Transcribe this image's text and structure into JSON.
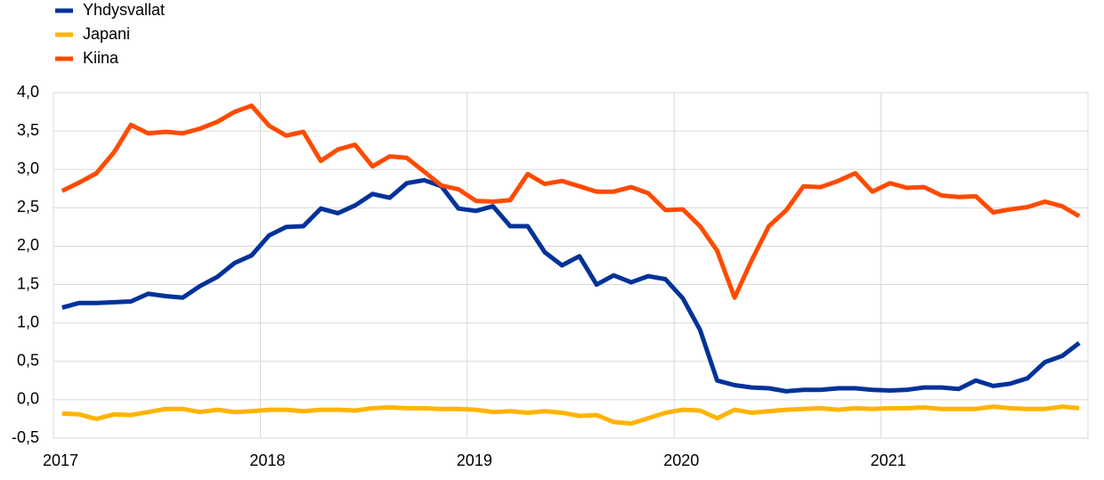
{
  "chart_data": {
    "type": "line",
    "x": [
      2017.042,
      2017.125,
      2017.208,
      2017.292,
      2017.375,
      2017.458,
      2017.542,
      2017.625,
      2017.708,
      2017.792,
      2017.875,
      2017.958,
      2018.042,
      2018.125,
      2018.208,
      2018.292,
      2018.375,
      2018.458,
      2018.542,
      2018.625,
      2018.708,
      2018.792,
      2018.875,
      2018.958,
      2019.042,
      2019.125,
      2019.208,
      2019.292,
      2019.375,
      2019.458,
      2019.542,
      2019.625,
      2019.708,
      2019.792,
      2019.875,
      2019.958,
      2020.042,
      2020.125,
      2020.208,
      2020.292,
      2020.375,
      2020.458,
      2020.542,
      2020.625,
      2020.708,
      2020.792,
      2020.875,
      2020.958,
      2021.042,
      2021.125,
      2021.208,
      2021.292,
      2021.375,
      2021.458,
      2021.542,
      2021.625,
      2021.708,
      2021.792,
      2021.875,
      2021.958
    ],
    "series": [
      {
        "name": "Yhdysvallat",
        "color": "#003299",
        "values": [
          1.2,
          1.26,
          1.26,
          1.27,
          1.28,
          1.38,
          1.35,
          1.33,
          1.48,
          1.6,
          1.78,
          1.88,
          2.14,
          2.25,
          2.26,
          2.49,
          2.43,
          2.53,
          2.68,
          2.63,
          2.82,
          2.86,
          2.78,
          2.49,
          2.46,
          2.52,
          2.26,
          2.26,
          1.92,
          1.75,
          1.87,
          1.5,
          1.62,
          1.53,
          1.61,
          1.57,
          1.32,
          0.91,
          0.25,
          0.19,
          0.16,
          0.15,
          0.11,
          0.13,
          0.13,
          0.15,
          0.15,
          0.13,
          0.12,
          0.13,
          0.16,
          0.16,
          0.14,
          0.25,
          0.18,
          0.21,
          0.28,
          0.49,
          0.57,
          0.74
        ]
      },
      {
        "name": "Japani",
        "color": "#ffb400",
        "values": [
          -0.18,
          -0.19,
          -0.25,
          -0.19,
          -0.2,
          -0.16,
          -0.12,
          -0.12,
          -0.16,
          -0.13,
          -0.16,
          -0.15,
          -0.13,
          -0.13,
          -0.15,
          -0.13,
          -0.13,
          -0.14,
          -0.11,
          -0.1,
          -0.11,
          -0.11,
          -0.12,
          -0.12,
          -0.13,
          -0.16,
          -0.15,
          -0.17,
          -0.15,
          -0.17,
          -0.21,
          -0.2,
          -0.29,
          -0.31,
          -0.24,
          -0.17,
          -0.13,
          -0.14,
          -0.24,
          -0.13,
          -0.17,
          -0.15,
          -0.13,
          -0.12,
          -0.11,
          -0.13,
          -0.11,
          -0.12,
          -0.11,
          -0.11,
          -0.1,
          -0.12,
          -0.12,
          -0.12,
          -0.09,
          -0.11,
          -0.12,
          -0.12,
          -0.09,
          -0.11
        ]
      },
      {
        "name": "Kiina",
        "color": "#ff4b00",
        "values": [
          2.72,
          2.83,
          2.95,
          3.22,
          3.58,
          3.47,
          3.49,
          3.47,
          3.53,
          3.62,
          3.75,
          3.83,
          3.57,
          3.44,
          3.49,
          3.11,
          3.26,
          3.32,
          3.04,
          3.17,
          3.15,
          2.97,
          2.79,
          2.74,
          2.59,
          2.58,
          2.6,
          2.94,
          2.81,
          2.85,
          2.78,
          2.71,
          2.71,
          2.77,
          2.69,
          2.47,
          2.48,
          2.26,
          1.94,
          1.33,
          1.82,
          2.26,
          2.47,
          2.78,
          2.77,
          2.85,
          2.95,
          2.71,
          2.82,
          2.76,
          2.77,
          2.66,
          2.64,
          2.65,
          2.44,
          2.48,
          2.51,
          2.58,
          2.52,
          2.39
        ]
      }
    ],
    "xlim": [
      2017,
      2022
    ],
    "xticks": [
      2017,
      2018,
      2019,
      2020,
      2021
    ],
    "ylim": [
      -0.5,
      4.0
    ],
    "yticks": [
      {
        "value": -0.5,
        "label": "-0,5"
      },
      {
        "value": 0,
        "label": "0,0"
      },
      {
        "value": 0.5,
        "label": "0,5"
      },
      {
        "value": 1.0,
        "label": "1,0"
      },
      {
        "value": 1.5,
        "label": "1,5"
      },
      {
        "value": 2.0,
        "label": "2,0"
      },
      {
        "value": 2.5,
        "label": "2,5"
      },
      {
        "value": 3.0,
        "label": "3,0"
      },
      {
        "value": 3.5,
        "label": "3,5"
      },
      {
        "value": 4.0,
        "label": "4,0"
      }
    ],
    "grid": true,
    "legend": "top-left"
  }
}
